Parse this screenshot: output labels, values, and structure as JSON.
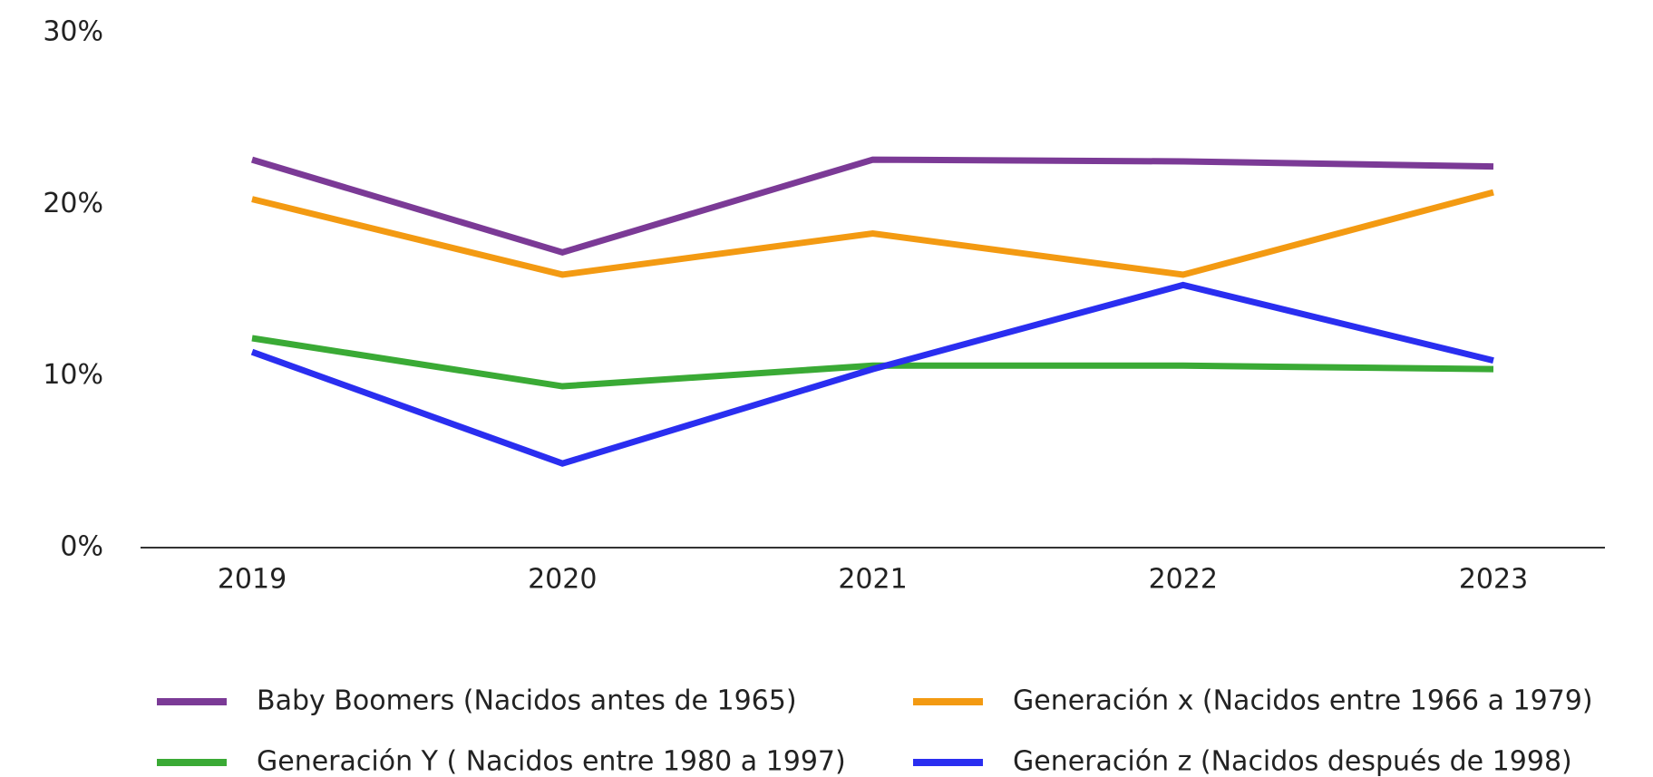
{
  "chart_data": {
    "type": "line",
    "categories": [
      "2019",
      "2020",
      "2021",
      "2022",
      "2023"
    ],
    "series": [
      {
        "name": "Baby Boomers (Nacidos antes de 1965)",
        "color": "#7b3a96",
        "values": [
          22.6,
          17.2,
          22.6,
          22.5,
          22.2
        ]
      },
      {
        "name": "Generación x (Nacidos entre 1966 a 1979)",
        "color": "#f39a12",
        "values": [
          20.3,
          15.9,
          18.3,
          15.9,
          20.7
        ]
      },
      {
        "name": "Generación Y ( Nacidos entre 1980 a 1997)",
        "color": "#3aaa35",
        "values": [
          12.2,
          9.4,
          10.6,
          10.6,
          10.4
        ]
      },
      {
        "name": "Generación z (Nacidos después de 1998)",
        "color": "#2a2ef0",
        "values": [
          11.4,
          4.9,
          10.4,
          15.3,
          10.9
        ]
      }
    ],
    "ylim": [
      0,
      30
    ],
    "yticks": [
      {
        "value": 0,
        "label": "0%"
      },
      {
        "value": 10,
        "label": "10%"
      },
      {
        "value": 20,
        "label": "20%"
      },
      {
        "value": 30,
        "label": "30%"
      }
    ],
    "grid": false
  }
}
